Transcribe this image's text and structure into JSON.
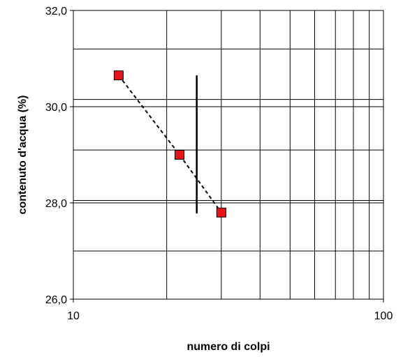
{
  "chart_data": {
    "type": "scatter",
    "title": "",
    "xlabel": "numero di colpi",
    "ylabel": "contenuto d'acqua (%)",
    "x_scale": "log",
    "xlim": [
      10,
      100
    ],
    "ylim": [
      26.0,
      32.0
    ],
    "x_ticks": [
      "10",
      "100"
    ],
    "y_ticks": [
      "26,0",
      "28,0",
      "30,0",
      "32,0"
    ],
    "y_tick_values": [
      26.0,
      28.0,
      30.0,
      32.0
    ],
    "y_minor_gridlines": [
      27.0,
      28.05,
      29.1,
      30.15,
      31.2
    ],
    "grid": true,
    "series": [
      {
        "marker": "square",
        "line": "dashed",
        "color": "#e8141c",
        "x": [
          14,
          22,
          30
        ],
        "y": [
          30.65,
          29.0,
          27.8
        ]
      }
    ],
    "reference_line": {
      "x": 25,
      "y_range": [
        27.78,
        30.65
      ]
    }
  }
}
